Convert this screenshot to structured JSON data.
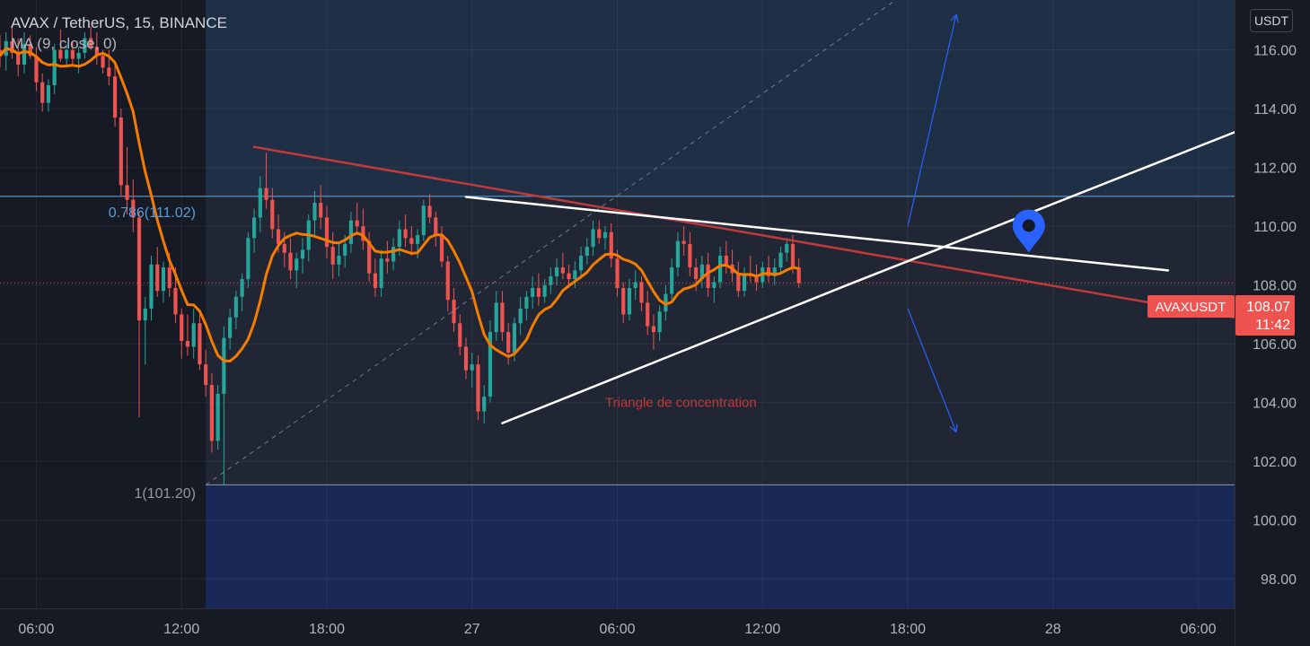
{
  "header": {
    "symbol_line": "AVAX / TetherUS, 15, BINANCE",
    "indicator_line": "MA (9, close, 0)"
  },
  "price_scale": {
    "unit": "USDT"
  },
  "price_label": {
    "symbol": "AVAXUSDT",
    "price": "108.07",
    "countdown": "11:42"
  },
  "colors": {
    "background": "#161a25",
    "up": "#26a69a",
    "down": "#ef5350",
    "ma": "#f57c00",
    "fib_line": "#5b9bd5",
    "resistance": "#c0393b",
    "trendlines": "#ffffff",
    "arrows": "#2962ff",
    "marker": "#2962ff"
  },
  "annotations": {
    "fib_upper": "0.786(111.02)",
    "fib_lower": "1(101.20)",
    "pattern_label": "Triangle de concentration"
  },
  "chart_data": {
    "type": "candlestick",
    "title": "AVAX / TetherUS, 15, BINANCE",
    "y_axis": {
      "min": 97,
      "max": 117.7,
      "ticks": [
        "98.00",
        "100.00",
        "102.00",
        "104.00",
        "106.00",
        "108.00",
        "110.00",
        "112.00",
        "114.00",
        "116.00"
      ]
    },
    "x_axis": {
      "start": "2021-10-26 04:30",
      "end": "2021-10-28 07:30",
      "ticks": [
        {
          "t": "2021-10-26 06:00",
          "label": "06:00"
        },
        {
          "t": "2021-10-26 12:00",
          "label": "12:00"
        },
        {
          "t": "2021-10-26 18:00",
          "label": "18:00"
        },
        {
          "t": "2021-10-27 00:00",
          "label": "27"
        },
        {
          "t": "2021-10-27 06:00",
          "label": "06:00"
        },
        {
          "t": "2021-10-27 12:00",
          "label": "12:00"
        },
        {
          "t": "2021-10-27 18:00",
          "label": "18:00"
        },
        {
          "t": "2021-10-28 00:00",
          "label": "28"
        },
        {
          "t": "2021-10-28 06:00",
          "label": "06:00"
        }
      ]
    },
    "series": [
      {
        "name": "AVAX / TetherUS",
        "type": "candlestick",
        "first_time": "2021-10-26 04:30",
        "interval_minutes": 15,
        "ohlc": [
          [
            116.0,
            116.5,
            115.4,
            115.8
          ],
          [
            115.8,
            116.6,
            115.3,
            116.3
          ],
          [
            116.3,
            116.8,
            115.7,
            115.9
          ],
          [
            115.9,
            116.4,
            115.1,
            115.5
          ],
          [
            115.5,
            116.6,
            115.2,
            116.2
          ],
          [
            116.2,
            116.5,
            115.7,
            115.8
          ],
          [
            115.8,
            116.1,
            114.6,
            114.9
          ],
          [
            114.9,
            115.2,
            113.9,
            114.2
          ],
          [
            114.2,
            115.0,
            113.9,
            114.8
          ],
          [
            114.8,
            116.2,
            114.5,
            116.0
          ],
          [
            116.0,
            116.7,
            115.6,
            115.7
          ],
          [
            115.7,
            116.2,
            115.4,
            116.0
          ],
          [
            116.0,
            116.3,
            115.5,
            115.7
          ],
          [
            115.7,
            116.1,
            115.2,
            115.9
          ],
          [
            115.9,
            116.6,
            115.7,
            116.4
          ],
          [
            116.4,
            116.8,
            116.0,
            116.1
          ],
          [
            116.1,
            116.6,
            115.5,
            115.8
          ],
          [
            115.8,
            116.0,
            115.2,
            115.4
          ],
          [
            115.4,
            116.0,
            114.8,
            115.1
          ],
          [
            115.1,
            115.5,
            113.4,
            113.7
          ],
          [
            113.7,
            114.0,
            111.0,
            111.4
          ],
          [
            111.4,
            112.7,
            110.4,
            110.9
          ],
          [
            110.9,
            111.6,
            109.8,
            110.3
          ],
          [
            110.3,
            110.5,
            103.5,
            106.8
          ],
          [
            106.8,
            107.6,
            105.3,
            107.2
          ],
          [
            107.2,
            109.0,
            106.8,
            108.7
          ],
          [
            108.7,
            109.3,
            107.6,
            107.8
          ],
          [
            107.8,
            108.8,
            107.4,
            108.6
          ],
          [
            108.6,
            109.1,
            107.6,
            107.9
          ],
          [
            107.9,
            108.6,
            106.7,
            107.0
          ],
          [
            107.0,
            107.2,
            105.5,
            106.1
          ],
          [
            106.1,
            107.0,
            105.6,
            105.9
          ],
          [
            105.9,
            107.2,
            105.5,
            106.7
          ],
          [
            106.7,
            107.0,
            105.1,
            105.3
          ],
          [
            105.3,
            105.8,
            104.2,
            104.6
          ],
          [
            104.6,
            105.0,
            102.3,
            102.7
          ],
          [
            102.7,
            104.6,
            102.4,
            104.3
          ],
          [
            104.3,
            106.6,
            101.2,
            106.2
          ],
          [
            106.2,
            107.2,
            105.8,
            106.9
          ],
          [
            106.9,
            107.8,
            106.5,
            107.6
          ],
          [
            107.6,
            108.4,
            107.1,
            108.2
          ],
          [
            108.2,
            109.8,
            107.9,
            109.6
          ],
          [
            109.6,
            110.6,
            109.1,
            110.3
          ],
          [
            110.3,
            111.7,
            109.8,
            111.3
          ],
          [
            111.3,
            112.5,
            110.6,
            110.9
          ],
          [
            110.9,
            111.3,
            109.6,
            109.9
          ],
          [
            109.9,
            110.4,
            109.1,
            109.4
          ],
          [
            109.4,
            109.8,
            108.6,
            109.1
          ],
          [
            109.1,
            109.6,
            108.2,
            108.5
          ],
          [
            108.5,
            109.1,
            107.9,
            108.9
          ],
          [
            108.9,
            109.6,
            108.4,
            109.2
          ],
          [
            109.2,
            110.4,
            108.8,
            110.2
          ],
          [
            110.2,
            111.2,
            109.7,
            110.8
          ],
          [
            110.8,
            111.4,
            109.9,
            110.3
          ],
          [
            110.3,
            110.7,
            108.9,
            109.3
          ],
          [
            109.3,
            109.8,
            108.2,
            108.7
          ],
          [
            108.7,
            109.4,
            108.3,
            109.0
          ],
          [
            109.0,
            109.7,
            108.6,
            109.4
          ],
          [
            109.4,
            110.5,
            109.1,
            110.2
          ],
          [
            110.2,
            110.8,
            109.7,
            110.0
          ],
          [
            110.0,
            110.6,
            109.2,
            109.5
          ],
          [
            109.5,
            109.8,
            108.1,
            108.4
          ],
          [
            108.4,
            108.9,
            107.6,
            107.9
          ],
          [
            107.9,
            109.2,
            107.6,
            108.9
          ],
          [
            108.9,
            109.5,
            108.4,
            108.8
          ],
          [
            108.8,
            109.6,
            108.5,
            109.3
          ],
          [
            109.3,
            110.2,
            109.0,
            109.9
          ],
          [
            109.9,
            110.4,
            109.3,
            109.6
          ],
          [
            109.6,
            110.0,
            109.0,
            109.4
          ],
          [
            109.4,
            109.9,
            108.9,
            109.7
          ],
          [
            109.7,
            110.9,
            109.5,
            110.7
          ],
          [
            110.7,
            111.1,
            110.1,
            110.3
          ],
          [
            110.3,
            110.5,
            109.3,
            109.7
          ],
          [
            109.7,
            110.0,
            108.6,
            108.8
          ],
          [
            108.8,
            109.0,
            107.1,
            107.5
          ],
          [
            107.5,
            107.9,
            106.4,
            106.7
          ],
          [
            106.7,
            107.0,
            105.6,
            105.9
          ],
          [
            105.9,
            106.2,
            104.8,
            105.1
          ],
          [
            105.1,
            105.7,
            104.5,
            105.3
          ],
          [
            105.3,
            105.6,
            103.4,
            103.7
          ],
          [
            103.7,
            104.6,
            103.3,
            104.2
          ],
          [
            104.2,
            106.8,
            104.0,
            106.4
          ],
          [
            106.4,
            107.8,
            106.1,
            107.4
          ],
          [
            107.4,
            107.8,
            106.1,
            106.4
          ],
          [
            106.4,
            106.7,
            105.3,
            105.7
          ],
          [
            105.7,
            106.9,
            105.4,
            106.7
          ],
          [
            106.7,
            107.6,
            106.3,
            107.2
          ],
          [
            107.2,
            107.8,
            106.8,
            107.6
          ],
          [
            107.6,
            108.3,
            107.2,
            107.9
          ],
          [
            107.9,
            108.4,
            107.3,
            107.6
          ],
          [
            107.6,
            108.2,
            107.4,
            108.0
          ],
          [
            108.0,
            108.6,
            107.7,
            108.3
          ],
          [
            108.3,
            108.9,
            108.0,
            108.6
          ],
          [
            108.6,
            109.1,
            108.2,
            108.4
          ],
          [
            108.4,
            108.7,
            107.9,
            108.2
          ],
          [
            108.2,
            108.8,
            107.9,
            108.5
          ],
          [
            108.5,
            109.3,
            108.2,
            109.0
          ],
          [
            109.0,
            109.6,
            108.7,
            109.3
          ],
          [
            109.3,
            110.2,
            109.0,
            109.9
          ],
          [
            109.9,
            110.2,
            109.4,
            109.6
          ],
          [
            109.6,
            110.0,
            109.2,
            109.8
          ],
          [
            109.8,
            110.1,
            108.6,
            108.9
          ],
          [
            108.9,
            109.2,
            107.6,
            107.9
          ],
          [
            107.9,
            108.1,
            106.7,
            107.0
          ],
          [
            107.0,
            108.2,
            106.8,
            107.9
          ],
          [
            107.9,
            108.5,
            107.5,
            108.1
          ],
          [
            108.1,
            108.3,
            107.1,
            107.4
          ],
          [
            107.4,
            107.8,
            106.3,
            106.6
          ],
          [
            106.6,
            107.0,
            105.8,
            106.4
          ],
          [
            106.4,
            107.3,
            106.1,
            107.1
          ],
          [
            107.1,
            108.0,
            106.8,
            107.7
          ],
          [
            107.7,
            108.9,
            107.5,
            108.6
          ],
          [
            108.6,
            109.8,
            108.3,
            109.5
          ],
          [
            109.5,
            110.0,
            109.0,
            109.4
          ],
          [
            109.4,
            109.8,
            108.3,
            108.6
          ],
          [
            108.6,
            108.9,
            107.8,
            108.2
          ],
          [
            108.2,
            109.0,
            107.9,
            108.7
          ],
          [
            108.7,
            109.1,
            107.6,
            107.9
          ],
          [
            107.9,
            108.3,
            107.4,
            108.1
          ],
          [
            108.1,
            109.3,
            107.9,
            109.0
          ],
          [
            109.0,
            109.5,
            108.4,
            108.7
          ],
          [
            108.7,
            109.2,
            108.1,
            108.4
          ],
          [
            108.4,
            108.8,
            107.6,
            107.8
          ],
          [
            107.8,
            108.6,
            107.6,
            108.4
          ],
          [
            108.4,
            109.0,
            108.1,
            108.3
          ],
          [
            108.3,
            108.7,
            107.8,
            108.1
          ],
          [
            108.1,
            108.8,
            107.9,
            108.6
          ],
          [
            108.6,
            109.0,
            108.1,
            108.3
          ],
          [
            108.3,
            108.9,
            108.0,
            108.6
          ],
          [
            108.6,
            109.3,
            108.4,
            109.1
          ],
          [
            109.1,
            109.6,
            108.8,
            109.4
          ],
          [
            109.4,
            109.7,
            108.4,
            108.6
          ],
          [
            108.6,
            108.9,
            107.9,
            108.07
          ]
        ]
      },
      {
        "name": "MA (9, close, 0)",
        "type": "line",
        "values": "moving average of the 9 most recent closes"
      }
    ],
    "drawings": {
      "fib_levels": [
        {
          "label": "0.786(111.02)",
          "price": 111.02
        },
        {
          "label": "1(101.20)",
          "price": 101.2
        }
      ],
      "fib_range_start": "2021-10-26 13:00",
      "trendlines": [
        {
          "kind": "resistance",
          "from": {
            "t": "2021-10-26 15:00",
            "p": 112.7
          },
          "to": {
            "t": "2021-10-28 07:30",
            "p": 106.9
          }
        },
        {
          "kind": "upper",
          "from": {
            "t": "2021-10-26 23:45",
            "p": 111.0
          },
          "to": {
            "t": "2021-10-28 04:45",
            "p": 108.5
          }
        },
        {
          "kind": "lower",
          "from": {
            "t": "2021-10-27 01:15",
            "p": 103.3
          },
          "to": {
            "t": "2021-10-27 15:30",
            "p": 108.0
          }
        },
        {
          "kind": "lower-extension",
          "from": {
            "t": "2021-10-27 15:30",
            "p": 108.0
          },
          "to": {
            "t": "2021-10-28 07:30",
            "p": 113.2
          }
        },
        {
          "kind": "fib-diagonal",
          "from": {
            "t": "2021-10-26 13:00",
            "p": 101.2
          },
          "to": {
            "t": "2021-10-27 17:30",
            "p": 117.7
          }
        }
      ],
      "arrows": [
        {
          "direction": "up",
          "from": {
            "t": "2021-10-27 18:00",
            "p": 110.0
          },
          "to": {
            "t": "2021-10-27 20:00",
            "p": 117.2
          }
        },
        {
          "direction": "down",
          "from": {
            "t": "2021-10-27 18:00",
            "p": 107.2
          },
          "to": {
            "t": "2021-10-27 20:00",
            "p": 103.0
          }
        }
      ],
      "marker": {
        "t": "2021-10-27 23:00",
        "p": 109.9
      },
      "pattern_label": {
        "text": "Triangle de concentration",
        "t": "2021-10-27 05:30",
        "p": 104.0
      }
    }
  }
}
